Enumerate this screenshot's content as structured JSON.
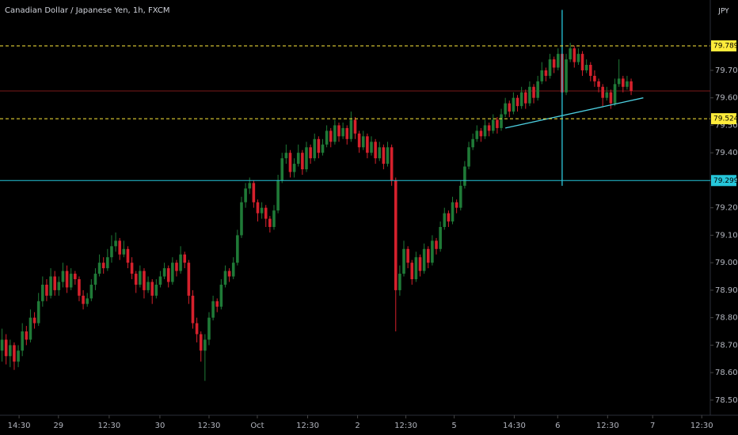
{
  "chart_data": {
    "type": "candlestick",
    "title": "Canadian Dollar / Japanese Yen, 1h, FXCM",
    "currency": "JPY",
    "up_color": "#1f7a37",
    "down_color": "#d5212c",
    "xlim": [
      -0.5,
      174.5
    ],
    "ylim": [
      78.445,
      79.956
    ],
    "xticks": [
      {
        "value": 4.2,
        "label": "14:30"
      },
      {
        "value": 13.9,
        "label": "29"
      },
      {
        "value": 26.4,
        "label": "12:30"
      },
      {
        "value": 38.9,
        "label": "30"
      },
      {
        "value": 51,
        "label": "12:30"
      },
      {
        "value": 62.9,
        "label": "Oct"
      },
      {
        "value": 75.3,
        "label": "12:30"
      },
      {
        "value": 87.6,
        "label": "2"
      },
      {
        "value": 99.5,
        "label": "12:30"
      },
      {
        "value": 111.4,
        "label": "5"
      },
      {
        "value": 126.2,
        "label": "14:30"
      },
      {
        "value": 136.9,
        "label": "6"
      },
      {
        "value": 149.2,
        "label": "12:30"
      },
      {
        "value": 160.3,
        "label": "7"
      },
      {
        "value": 172.4,
        "label": "12:30"
      }
    ],
    "yticks": [
      {
        "value": 78.5,
        "label": "78.500"
      },
      {
        "value": 78.6,
        "label": "78.600"
      },
      {
        "value": 78.7,
        "label": "78.700"
      },
      {
        "value": 78.8,
        "label": "78.800"
      },
      {
        "value": 78.9,
        "label": "78.900"
      },
      {
        "value": 79.0,
        "label": "79.000"
      },
      {
        "value": 79.1,
        "label": "79.100"
      },
      {
        "value": 79.2,
        "label": "79.200"
      },
      {
        "value": 79.3,
        "label": "79.300"
      },
      {
        "value": 79.4,
        "label": "79.400"
      },
      {
        "value": 79.5,
        "label": "79.500"
      },
      {
        "value": 79.6,
        "label": "79.600"
      },
      {
        "value": 79.7,
        "label": "79.700"
      }
    ],
    "hlines": [
      {
        "value": 79.789,
        "color": "#ffeb3b",
        "style": "dashed"
      },
      {
        "value": 79.524,
        "color": "#ffeb3b",
        "style": "dashed"
      },
      {
        "value": 79.299,
        "color": "#26c6da",
        "style": "solid"
      }
    ],
    "price_line": {
      "value": 79.625,
      "color": "#7a1a1a"
    },
    "trendline": {
      "x": [
        124,
        158
      ],
      "y": [
        79.49,
        79.6
      ],
      "color": "#4dd0e1"
    },
    "vline": {
      "x": 138,
      "y": [
        79.92,
        79.28
      ],
      "color": "#26c6da"
    },
    "ohlc": [
      [
        78.68,
        78.76,
        78.64,
        78.72
      ],
      [
        78.72,
        78.74,
        78.63,
        78.66
      ],
      [
        78.66,
        78.72,
        78.62,
        78.7
      ],
      [
        78.7,
        78.71,
        78.61,
        78.64
      ],
      [
        78.64,
        78.7,
        78.62,
        78.68
      ],
      [
        78.68,
        78.78,
        78.66,
        78.75
      ],
      [
        78.75,
        78.77,
        78.7,
        78.72
      ],
      [
        78.72,
        78.83,
        78.71,
        78.8
      ],
      [
        78.8,
        78.82,
        78.76,
        78.78
      ],
      [
        78.78,
        78.89,
        78.77,
        78.86
      ],
      [
        78.86,
        78.95,
        78.84,
        78.92
      ],
      [
        78.92,
        78.94,
        78.86,
        78.88
      ],
      [
        78.88,
        78.98,
        78.87,
        78.95
      ],
      [
        78.95,
        78.97,
        78.88,
        78.9
      ],
      [
        78.9,
        78.95,
        78.88,
        78.93
      ],
      [
        78.93,
        79.0,
        78.91,
        78.97
      ],
      [
        78.97,
        78.99,
        78.89,
        78.91
      ],
      [
        78.91,
        78.98,
        78.9,
        78.96
      ],
      [
        78.96,
        78.97,
        78.92,
        78.94
      ],
      [
        78.94,
        78.95,
        78.86,
        78.88
      ],
      [
        78.88,
        78.9,
        78.83,
        78.85
      ],
      [
        78.85,
        78.89,
        78.84,
        78.87
      ],
      [
        78.87,
        78.94,
        78.86,
        78.92
      ],
      [
        78.92,
        78.98,
        78.9,
        78.96
      ],
      [
        78.96,
        79.03,
        78.95,
        79.0
      ],
      [
        79.0,
        79.02,
        78.96,
        78.98
      ],
      [
        78.98,
        79.05,
        78.97,
        79.02
      ],
      [
        79.02,
        79.1,
        79.0,
        79.06
      ],
      [
        79.06,
        79.11,
        79.04,
        79.08
      ],
      [
        79.08,
        79.09,
        79.01,
        79.03
      ],
      [
        79.03,
        79.08,
        79.02,
        79.05
      ],
      [
        79.05,
        79.06,
        78.98,
        79.0
      ],
      [
        79.0,
        79.02,
        78.94,
        78.96
      ],
      [
        78.96,
        78.97,
        78.89,
        78.92
      ],
      [
        78.92,
        78.99,
        78.91,
        78.97
      ],
      [
        78.97,
        78.98,
        78.87,
        78.9
      ],
      [
        78.9,
        78.95,
        78.89,
        78.93
      ],
      [
        78.93,
        78.94,
        78.85,
        78.88
      ],
      [
        78.88,
        78.94,
        78.87,
        78.92
      ],
      [
        78.92,
        78.97,
        78.91,
        78.95
      ],
      [
        78.95,
        79.0,
        78.94,
        78.98
      ],
      [
        78.98,
        78.99,
        78.91,
        78.93
      ],
      [
        78.93,
        79.02,
        78.92,
        79.0
      ],
      [
        79.0,
        79.01,
        78.95,
        78.97
      ],
      [
        78.97,
        79.06,
        78.96,
        79.03
      ],
      [
        79.03,
        79.04,
        78.98,
        79.0
      ],
      [
        79.0,
        79.01,
        78.85,
        78.88
      ],
      [
        78.88,
        78.9,
        78.76,
        78.78
      ],
      [
        78.78,
        78.8,
        78.71,
        78.74
      ],
      [
        78.74,
        78.75,
        78.64,
        78.68
      ],
      [
        78.68,
        78.74,
        78.57,
        78.72
      ],
      [
        78.72,
        78.82,
        78.7,
        78.8
      ],
      [
        78.8,
        78.88,
        78.79,
        78.86
      ],
      [
        78.86,
        78.87,
        78.82,
        78.84
      ],
      [
        78.84,
        78.94,
        78.83,
        78.92
      ],
      [
        78.92,
        78.99,
        78.91,
        78.97
      ],
      [
        78.97,
        78.98,
        78.93,
        78.95
      ],
      [
        78.95,
        79.02,
        78.94,
        79.0
      ],
      [
        79.0,
        79.12,
        78.99,
        79.1
      ],
      [
        79.1,
        79.24,
        79.09,
        79.22
      ],
      [
        79.22,
        79.29,
        79.2,
        79.27
      ],
      [
        79.27,
        79.31,
        79.25,
        79.29
      ],
      [
        79.29,
        79.3,
        79.2,
        79.22
      ],
      [
        79.22,
        79.23,
        79.15,
        79.18
      ],
      [
        79.18,
        79.22,
        79.16,
        79.2
      ],
      [
        79.2,
        79.21,
        79.13,
        79.16
      ],
      [
        79.16,
        79.17,
        79.11,
        79.13
      ],
      [
        79.13,
        79.21,
        79.12,
        79.19
      ],
      [
        79.19,
        79.32,
        79.18,
        79.3
      ],
      [
        79.3,
        79.4,
        79.29,
        79.38
      ],
      [
        79.38,
        79.43,
        79.36,
        79.4
      ],
      [
        79.4,
        79.41,
        79.31,
        79.33
      ],
      [
        79.33,
        79.38,
        79.31,
        79.36
      ],
      [
        79.36,
        79.43,
        79.35,
        79.4
      ],
      [
        79.4,
        79.41,
        79.32,
        79.34
      ],
      [
        79.34,
        79.44,
        79.33,
        79.42
      ],
      [
        79.42,
        79.43,
        79.36,
        79.38
      ],
      [
        79.38,
        79.47,
        79.37,
        79.45
      ],
      [
        79.45,
        79.46,
        79.38,
        79.4
      ],
      [
        79.4,
        79.45,
        79.39,
        79.43
      ],
      [
        79.43,
        79.5,
        79.42,
        79.48
      ],
      [
        79.48,
        79.49,
        79.42,
        79.44
      ],
      [
        79.44,
        79.52,
        79.43,
        79.5
      ],
      [
        79.5,
        79.51,
        79.44,
        79.46
      ],
      [
        79.46,
        79.51,
        79.45,
        79.49
      ],
      [
        79.49,
        79.5,
        79.43,
        79.45
      ],
      [
        79.45,
        79.55,
        79.44,
        79.52
      ],
      [
        79.52,
        79.53,
        79.45,
        79.47
      ],
      [
        79.47,
        79.48,
        79.4,
        79.42
      ],
      [
        79.42,
        79.48,
        79.41,
        79.46
      ],
      [
        79.46,
        79.47,
        79.38,
        79.4
      ],
      [
        79.4,
        79.46,
        79.39,
        79.44
      ],
      [
        79.44,
        79.45,
        79.36,
        79.38
      ],
      [
        79.38,
        79.44,
        79.37,
        79.42
      ],
      [
        79.42,
        79.43,
        79.34,
        79.36
      ],
      [
        79.36,
        79.44,
        79.35,
        79.42
      ],
      [
        79.42,
        79.43,
        79.28,
        79.3
      ],
      [
        79.3,
        79.31,
        78.75,
        78.9
      ],
      [
        78.9,
        78.99,
        78.88,
        78.96
      ],
      [
        78.96,
        79.08,
        78.95,
        79.05
      ],
      [
        79.05,
        79.06,
        78.98,
        79.0
      ],
      [
        79.0,
        79.01,
        78.92,
        78.94
      ],
      [
        78.94,
        79.04,
        78.93,
        79.02
      ],
      [
        79.02,
        79.03,
        78.95,
        78.97
      ],
      [
        78.97,
        79.07,
        78.96,
        79.05
      ],
      [
        79.05,
        79.06,
        78.98,
        79.0
      ],
      [
        79.0,
        79.1,
        78.99,
        79.08
      ],
      [
        79.08,
        79.09,
        79.03,
        79.05
      ],
      [
        79.05,
        79.15,
        79.04,
        79.13
      ],
      [
        79.13,
        79.2,
        79.12,
        79.18
      ],
      [
        79.18,
        79.19,
        79.13,
        79.15
      ],
      [
        79.15,
        79.24,
        79.14,
        79.22
      ],
      [
        79.22,
        79.23,
        79.18,
        79.2
      ],
      [
        79.2,
        79.3,
        79.19,
        79.28
      ],
      [
        79.28,
        79.37,
        79.27,
        79.35
      ],
      [
        79.35,
        79.44,
        79.34,
        79.42
      ],
      [
        79.42,
        79.47,
        79.41,
        79.45
      ],
      [
        79.45,
        79.5,
        79.44,
        79.48
      ],
      [
        79.48,
        79.49,
        79.44,
        79.46
      ],
      [
        79.46,
        79.52,
        79.45,
        79.5
      ],
      [
        79.5,
        79.51,
        79.46,
        79.48
      ],
      [
        79.48,
        79.54,
        79.47,
        79.52
      ],
      [
        79.52,
        79.53,
        79.47,
        79.49
      ],
      [
        79.49,
        79.56,
        79.48,
        79.54
      ],
      [
        79.54,
        79.6,
        79.53,
        79.58
      ],
      [
        79.58,
        79.59,
        79.53,
        79.55
      ],
      [
        79.55,
        79.62,
        79.54,
        79.6
      ],
      [
        79.6,
        79.61,
        79.55,
        79.57
      ],
      [
        79.57,
        79.64,
        79.56,
        79.62
      ],
      [
        79.62,
        79.63,
        79.56,
        79.58
      ],
      [
        79.58,
        79.66,
        79.57,
        79.64
      ],
      [
        79.64,
        79.65,
        79.58,
        79.6
      ],
      [
        79.6,
        79.68,
        79.59,
        79.66
      ],
      [
        79.66,
        79.73,
        79.65,
        79.7
      ],
      [
        79.7,
        79.71,
        79.66,
        79.68
      ],
      [
        79.68,
        79.76,
        79.67,
        79.74
      ],
      [
        79.74,
        79.75,
        79.69,
        79.71
      ],
      [
        79.71,
        79.78,
        79.7,
        79.76
      ],
      [
        79.76,
        79.77,
        79.28,
        79.62
      ],
      [
        79.62,
        79.76,
        79.61,
        79.74
      ],
      [
        79.74,
        79.8,
        79.73,
        79.78
      ],
      [
        79.78,
        79.79,
        79.71,
        79.73
      ],
      [
        79.73,
        79.78,
        79.72,
        79.76
      ],
      [
        79.76,
        79.77,
        79.68,
        79.7
      ],
      [
        79.7,
        79.74,
        79.69,
        79.72
      ],
      [
        79.72,
        79.73,
        79.66,
        79.68
      ],
      [
        79.68,
        79.7,
        79.64,
        79.66
      ],
      [
        79.66,
        79.67,
        79.62,
        79.64
      ],
      [
        79.64,
        79.65,
        79.57,
        79.6
      ],
      [
        79.6,
        79.64,
        79.59,
        79.62
      ],
      [
        79.62,
        79.63,
        79.56,
        79.58
      ],
      [
        79.58,
        79.67,
        79.57,
        79.65
      ],
      [
        79.65,
        79.74,
        79.64,
        79.67
      ],
      [
        79.67,
        79.68,
        79.62,
        79.64
      ],
      [
        79.64,
        79.68,
        79.63,
        79.66
      ],
      [
        79.66,
        79.67,
        79.61,
        79.625
      ]
    ]
  }
}
